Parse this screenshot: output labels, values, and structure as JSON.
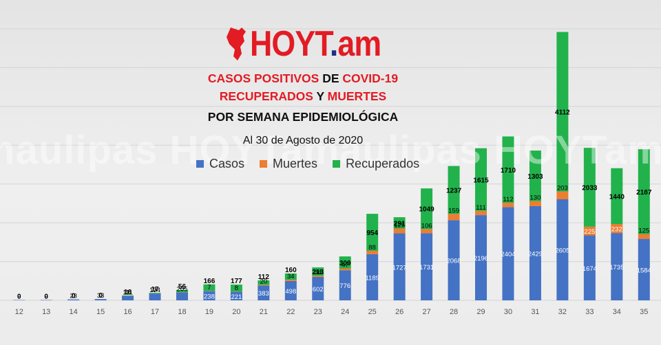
{
  "logo": {
    "text_main": "HOYT",
    "text_dot": ".",
    "text_tld": "am"
  },
  "title": {
    "line1": {
      "a": "CASOS POSITIVOS",
      "b": " DE ",
      "c": "COVID-19"
    },
    "line2": {
      "a": "RECUPERADOS",
      "b": " Y ",
      "c": "MUERTES"
    },
    "line3": "POR SEMANA EPIDEMIOLÓGICA",
    "date": "Al 30 de Agosto de 2020"
  },
  "watermark": "maulipas HOYTamaulipas HOYTamaulipas HOYTama",
  "colors": {
    "casos": "#4472c4",
    "muertes": "#ed7d31",
    "recuperados": "#22b24c"
  },
  "chart_data": {
    "type": "bar",
    "stacked": true,
    "categories": [
      "12",
      "13",
      "14",
      "15",
      "16",
      "17",
      "18",
      "19",
      "20",
      "21",
      "22",
      "23",
      "24",
      "25",
      "26",
      "27",
      "28",
      "29",
      "30",
      "31",
      "32",
      "33",
      "34",
      "35"
    ],
    "series": [
      {
        "name": "Casos",
        "values": [
          9,
          9,
          23,
          33,
          111,
          174,
          205,
          238,
          221,
          383,
          498,
          602,
          776,
          1189,
          1727,
          1731,
          2068,
          2196,
          2404,
          2429,
          2605,
          1674,
          1735,
          1584
        ]
      },
      {
        "name": "Muertes",
        "values": [
          0,
          0,
          0,
          0,
          1,
          3,
          5,
          7,
          8,
          20,
          34,
          34,
          47,
          88,
          125,
          106,
          159,
          111,
          112,
          130,
          203,
          225,
          232,
          125
        ]
      },
      {
        "name": "Recuperados",
        "values": [
          0,
          0,
          0,
          0,
          16,
          17,
          56,
          166,
          177,
          112,
          160,
          213,
          309,
          954,
          291,
          1049,
          1237,
          1615,
          1710,
          1303,
          4112,
          2033,
          1440,
          2187
        ]
      }
    ],
    "ylim": [
      0,
      7000
    ],
    "grid": true,
    "legend_position": "top-center"
  }
}
